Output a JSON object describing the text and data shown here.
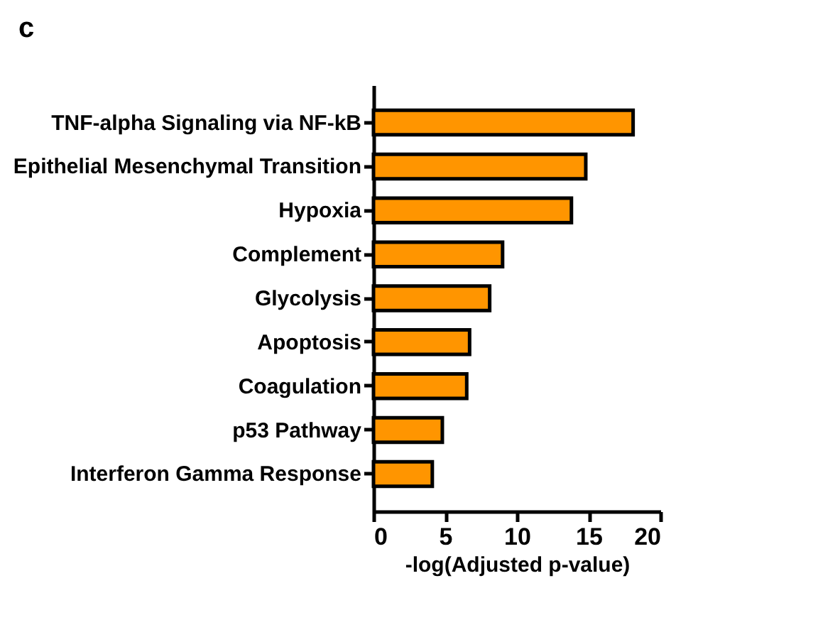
{
  "chart_data": {
    "type": "bar",
    "orientation": "horizontal",
    "title": "c",
    "xlabel": "-log(Adjusted p-value)",
    "categories": [
      "TNF-alpha Signaling via NF-kB",
      "Epithelial Mesenchymal Transition",
      "Hypoxia",
      "Complement",
      "Glycolysis",
      "Apoptosis",
      "Coagulation",
      "p53 Pathway",
      "Interferon Gamma Response"
    ],
    "values": [
      18.1,
      14.8,
      13.8,
      9.0,
      8.1,
      6.7,
      6.5,
      4.8,
      4.1
    ],
    "color": "#ff9500",
    "xlim": [
      0,
      20
    ],
    "xticks": [
      0,
      5,
      10,
      15,
      20
    ],
    "grid": false
  }
}
